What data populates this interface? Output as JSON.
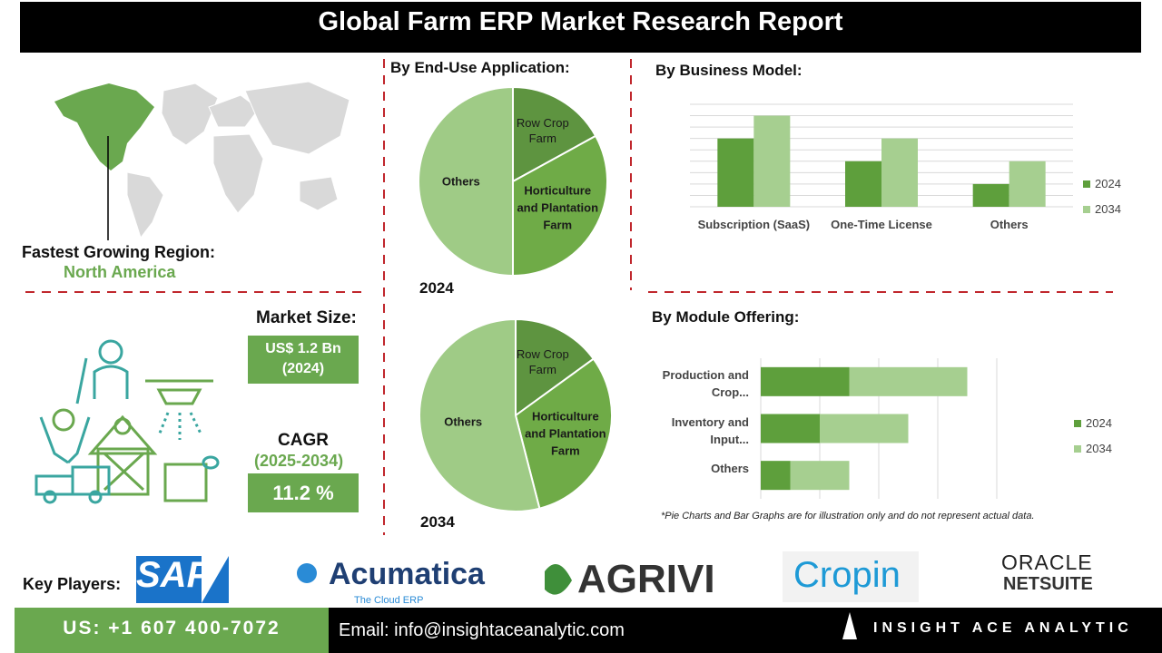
{
  "title": "Global Farm ERP Market Research Report",
  "region": {
    "label": "Fastest Growing Region:",
    "value": "North America"
  },
  "market_size": {
    "label": "Market Size:",
    "value": "US$ 1.2 Bn",
    "year": "(2024)"
  },
  "cagr": {
    "label": "CAGR",
    "period": "(2025-2034)",
    "value": "11.2 %"
  },
  "note": "*Pie Charts and Bar Graphs are for illustration only and do not represent actual data.",
  "key_players": {
    "label": "Key Players:",
    "sap": "SAP",
    "acumatica": "Acumatica",
    "acumatica_tagline": "The Cloud ERP",
    "agrivi": "AGRIVI",
    "cropin": "Cropin",
    "oracle": "ORACLE",
    "netsuite": "NETSUITE"
  },
  "footer": {
    "phone": "US: +1 607 400-7072",
    "email": "Email: info@insightaceanalytic.com",
    "brand": "INSIGHT ACE ANALYTIC"
  },
  "chart_data": [
    {
      "type": "pie",
      "title": "By End-Use Application:",
      "subtitle": "2024",
      "categories": [
        "Row Crop Farm",
        "Horticulture and Plantation Farm",
        "Others"
      ],
      "values": [
        17,
        33,
        50
      ],
      "colors": [
        "#5e9440",
        "#6fab47",
        "#9fcb86"
      ]
    },
    {
      "type": "pie",
      "subtitle": "2034",
      "categories": [
        "Row Crop Farm",
        "Horticulture and Plantation Farm",
        "Others"
      ],
      "values": [
        15,
        31,
        54
      ],
      "colors": [
        "#5e9440",
        "#6fab47",
        "#9fcb86"
      ]
    },
    {
      "type": "bar",
      "title": "By Business Model:",
      "categories": [
        "Subscription (SaaS)",
        "One-Time License",
        "Others"
      ],
      "series": [
        {
          "name": "2024",
          "color": "#5e9f3c",
          "values": [
            3,
            2,
            1
          ]
        },
        {
          "name": "2034",
          "color": "#a6cf90",
          "values": [
            4,
            3,
            2
          ]
        }
      ],
      "ylim": [
        0,
        4.5
      ],
      "yticks": [
        0,
        0.5,
        1,
        1.5,
        2,
        2.5,
        3,
        3.5,
        4,
        4.5
      ],
      "grid": true,
      "legend": "right"
    },
    {
      "type": "hbar",
      "title": "By Module Offering:",
      "stacked": true,
      "categories": [
        "Production and Crop...",
        "Inventory and Input...",
        "Others"
      ],
      "series": [
        {
          "name": "2024",
          "color": "#5e9f3c",
          "values": [
            1.5,
            1,
            0.5
          ]
        },
        {
          "name": "2034",
          "color": "#a6cf90",
          "values": [
            2,
            1.5,
            1
          ]
        }
      ],
      "xlim": [
        0,
        4
      ],
      "xticks": [
        0,
        1,
        2,
        3,
        4
      ],
      "grid": true,
      "legend": "right"
    }
  ]
}
